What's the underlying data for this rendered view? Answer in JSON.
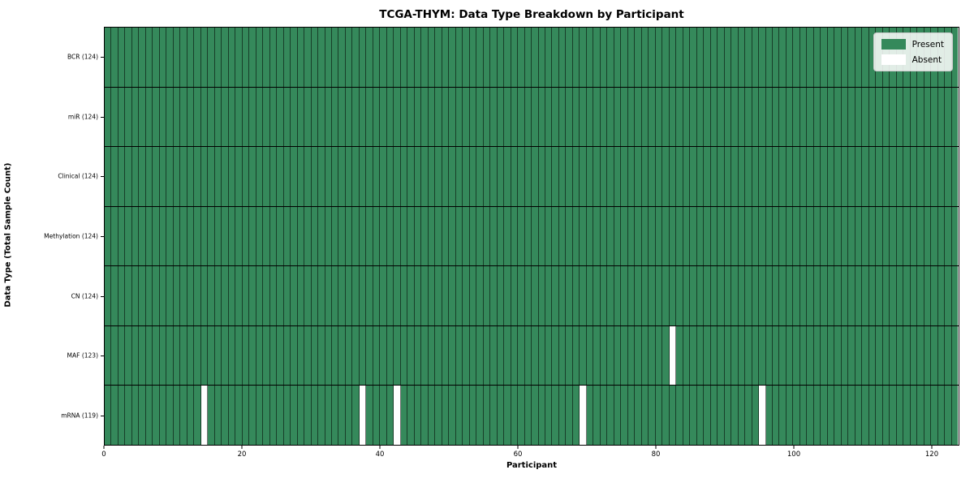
{
  "chart_data": {
    "type": "heatmap",
    "title": "TCGA-THYM: Data Type Breakdown by Participant",
    "xlabel": "Participant",
    "ylabel": "Data Type (Total Sample Count)",
    "n_participants": 124,
    "xlim": [
      0,
      124
    ],
    "x_ticks": [
      0,
      20,
      40,
      60,
      80,
      100,
      120
    ],
    "grid": "cell-edges-on",
    "legend_position": "upper-right",
    "legend": [
      {
        "label": "Present",
        "color": "#35895b"
      },
      {
        "label": "Absent",
        "color": "#ffffff"
      }
    ],
    "rows": [
      {
        "label": "BCR (124)",
        "data_type": "BCR",
        "present_count": 124,
        "absent_indices": []
      },
      {
        "label": "miR (124)",
        "data_type": "miR",
        "present_count": 124,
        "absent_indices": []
      },
      {
        "label": "Clinical (124)",
        "data_type": "Clinical",
        "present_count": 124,
        "absent_indices": []
      },
      {
        "label": "Methylation (124)",
        "data_type": "Methylation",
        "present_count": 124,
        "absent_indices": []
      },
      {
        "label": "CN (124)",
        "data_type": "CN",
        "present_count": 124,
        "absent_indices": []
      },
      {
        "label": "MAF (123)",
        "data_type": "MAF",
        "present_count": 123,
        "absent_indices": [
          82
        ]
      },
      {
        "label": "mRNA (119)",
        "data_type": "mRNA",
        "present_count": 119,
        "absent_indices": [
          14,
          37,
          42,
          69,
          95
        ]
      }
    ],
    "colors": {
      "present": "#35895b",
      "absent": "#ffffff",
      "cell_edge": "rgba(0,0,0,0.55)",
      "row_separator": "#000000",
      "plot_border": "#000000",
      "background": "#ffffff"
    }
  }
}
